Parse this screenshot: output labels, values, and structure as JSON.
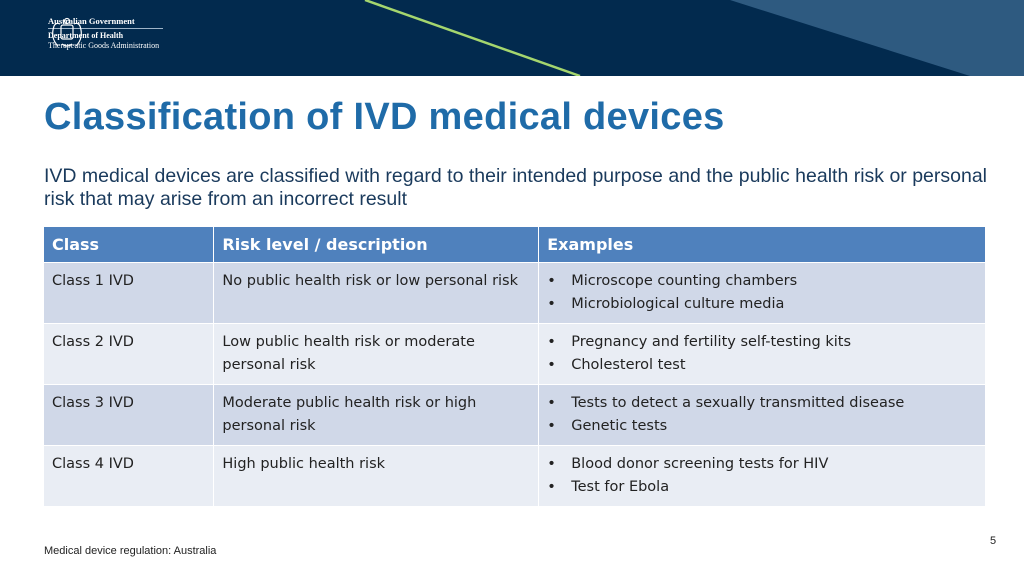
{
  "header": {
    "logo": {
      "government": "Australian Government",
      "department": "Department of Health",
      "agency": "Therapeutic Goods Administration"
    },
    "colors": {
      "band": "#022a4e",
      "accent_line": "#a5d66e",
      "triangle": "#2e5a80"
    }
  },
  "title": "Classification of IVD medical devices",
  "subtitle": "IVD medical devices are classified with regard to their intended purpose and the public health risk or personal risk that may arise from an incorrect result",
  "table": {
    "headers": [
      "Class",
      "Risk level / description",
      "Examples"
    ],
    "rows": [
      {
        "class": "Class 1 IVD",
        "risk": "No public health risk or low personal risk",
        "examples": [
          "Microscope counting chambers",
          "Microbiological culture media"
        ]
      },
      {
        "class": "Class 2 IVD",
        "risk": "Low public health risk or moderate personal risk",
        "examples": [
          "Pregnancy and fertility self-testing kits",
          "Cholesterol test"
        ]
      },
      {
        "class": "Class 3 IVD",
        "risk": "Moderate public health risk or high personal risk",
        "examples": [
          "Tests to detect a sexually transmitted disease",
          "Genetic tests"
        ]
      },
      {
        "class": "Class 4 IVD",
        "risk": "High public health risk",
        "examples": [
          "Blood donor screening tests for HIV",
          "Test for Ebola"
        ]
      }
    ]
  },
  "footer": {
    "text": "Medical device regulation: Australia",
    "page_number": "5"
  }
}
